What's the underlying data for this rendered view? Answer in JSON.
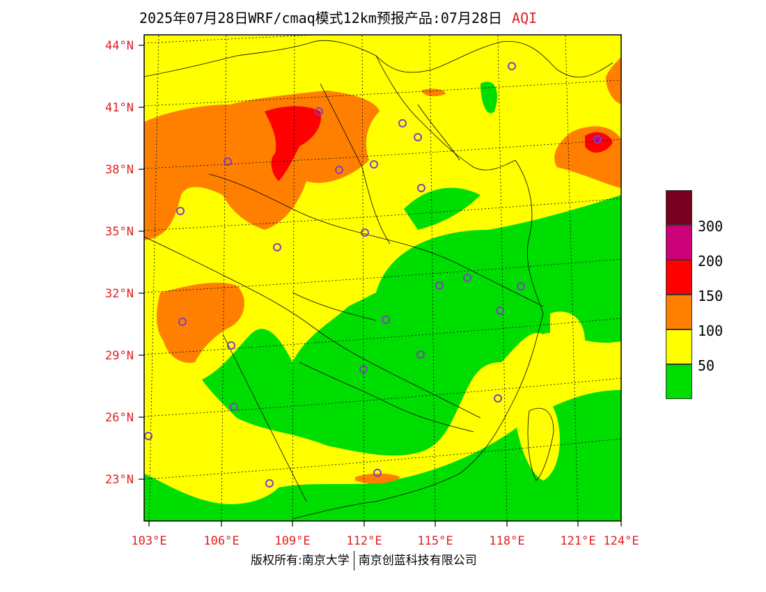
{
  "header": {
    "title": "2025年07月28日WRF/cmaq模式12km预报产品:07月28日",
    "variable": "AQI"
  },
  "footer": {
    "copyright": "版权所有:南京大学",
    "company": "南京创蓝科技有限公司"
  },
  "axes": {
    "lat_labels": [
      "44°N",
      "41°N",
      "38°N",
      "35°N",
      "32°N",
      "29°N",
      "26°N",
      "23°N"
    ],
    "lon_labels": [
      "103°E",
      "106°E",
      "109°E",
      "112°E",
      "115°E",
      "118°E",
      "121°E",
      "124°E"
    ]
  },
  "legend": {
    "labels": [
      "300",
      "200",
      "150",
      "100",
      "50"
    ],
    "colors": [
      "#7a0022",
      "#cc0077",
      "#ff0000",
      "#ff8000",
      "#ffff00",
      "#00dd00"
    ]
  },
  "colors": {
    "axis_label": "#e02020",
    "good": "#00dd00",
    "moderate": "#ffff00",
    "unhealthy_sensitive": "#ff8000",
    "unhealthy": "#ff0000",
    "very_unhealthy": "#cc0077",
    "station_marker": "#8040c0"
  }
}
